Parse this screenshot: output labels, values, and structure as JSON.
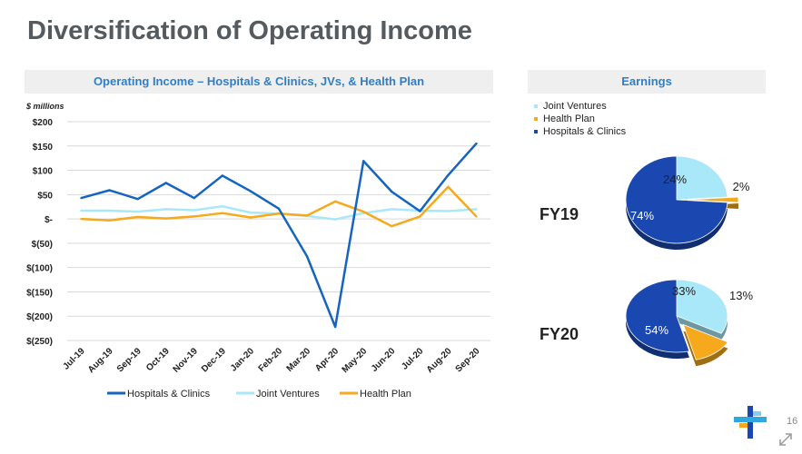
{
  "slide": {
    "title": "Diversification of Operating Income",
    "page_number": "16"
  },
  "colors": {
    "hospitals": "#1565c0",
    "joint_ventures": "#a8e8f8",
    "health_plan": "#f6a91c",
    "band_text": "#2f7fc8",
    "band_bg": "#efefef"
  },
  "icons": [
    "company-logo-icon",
    "expand-icon"
  ],
  "chart_data": [
    {
      "type": "line",
      "title": "Operating Income – Hospitals & Clinics, JVs, & Health Plan",
      "units_label": "$ millions",
      "categories": [
        "Jul-19",
        "Aug-19",
        "Sep-19",
        "Oct-19",
        "Nov-19",
        "Dec-19",
        "Jan-20",
        "Feb-20",
        "Mar-20",
        "Apr-20",
        "May-20",
        "Jun-20",
        "Jul-20",
        "Aug-20",
        "Sep-20"
      ],
      "y_ticks": [
        {
          "value": 200,
          "label": "$200"
        },
        {
          "value": 150,
          "label": "$150"
        },
        {
          "value": 100,
          "label": "$100"
        },
        {
          "value": 50,
          "label": "$50"
        },
        {
          "value": 0,
          "label": "$-"
        },
        {
          "value": -50,
          "label": "$(50)"
        },
        {
          "value": -100,
          "label": "$(100)"
        },
        {
          "value": -150,
          "label": "$(150)"
        },
        {
          "value": -200,
          "label": "$(200)"
        },
        {
          "value": -250,
          "label": "$(250)"
        }
      ],
      "ylim": [
        -250,
        200
      ],
      "grid": true,
      "legend_position": "bottom",
      "series": [
        {
          "name": "Hospitals & Clinics",
          "color": "#1565c0",
          "values": [
            43,
            59,
            41,
            74,
            43,
            89,
            57,
            21,
            -77,
            -222,
            119,
            56,
            16,
            90,
            155
          ]
        },
        {
          "name": "Joint Ventures",
          "color": "#a8e8f8",
          "values": [
            17,
            17,
            15,
            20,
            18,
            26,
            13,
            11,
            6,
            -1,
            12,
            20,
            17,
            16,
            20
          ]
        },
        {
          "name": "Health Plan",
          "color": "#f6a91c",
          "values": [
            0,
            -3,
            4,
            1,
            5,
            12,
            3,
            11,
            7,
            36,
            15,
            -15,
            5,
            66,
            5
          ]
        }
      ]
    },
    {
      "type": "pie",
      "title": "Earnings",
      "legend": [
        "Joint Ventures",
        "Health Plan",
        "Hospitals & Clinics"
      ],
      "legend_position": "top-left",
      "charts": [
        {
          "label": "FY19",
          "slices": [
            {
              "name": "Joint Ventures",
              "value": 24,
              "label": "24%",
              "color": "#a8e8f8"
            },
            {
              "name": "Health Plan",
              "value": 2,
              "label": "2%",
              "color": "#f6a91c"
            },
            {
              "name": "Hospitals & Clinics",
              "value": 74,
              "label": "74%",
              "color": "#1a47b0"
            }
          ]
        },
        {
          "label": "FY20",
          "slices": [
            {
              "name": "Joint Ventures",
              "value": 33,
              "label": "33%",
              "color": "#a8e8f8"
            },
            {
              "name": "Health Plan",
              "value": 13,
              "label": "13%",
              "color": "#f6a91c"
            },
            {
              "name": "Hospitals & Clinics",
              "value": 54,
              "label": "54%",
              "color": "#1a47b0"
            }
          ]
        }
      ]
    }
  ]
}
